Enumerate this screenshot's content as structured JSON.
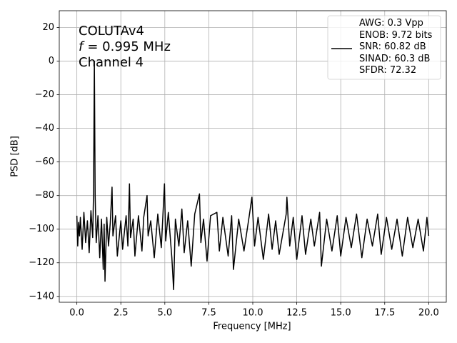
{
  "chart_data": {
    "type": "line",
    "xlabel": "Frequency [MHz]",
    "ylabel": "PSD [dB]",
    "annotation": [
      "COLUTAv4",
      "f",
      "= 0.995 MHz",
      "Channel 4"
    ],
    "xlim": [
      -1,
      21
    ],
    "ylim": [
      -143.5,
      30
    ],
    "xticks": [
      {
        "value": 0,
        "label": "0.0"
      },
      2.5,
      {
        "value": 5,
        "label": "5.0"
      },
      7.5,
      {
        "value": 10,
        "label": "10.0"
      },
      12.5,
      {
        "value": 15,
        "label": "15.0"
      },
      17.5,
      {
        "value": 20,
        "label": "20.0"
      }
    ],
    "yticks": [
      20,
      0,
      {
        "value": -20,
        "label": "−20"
      },
      {
        "value": -40,
        "label": "−40"
      },
      {
        "value": -60,
        "label": "−60"
      },
      {
        "value": -80,
        "label": "−80"
      },
      {
        "value": -100,
        "label": "−100"
      },
      {
        "value": -120,
        "label": "−120"
      },
      {
        "value": -140,
        "label": "−140"
      }
    ],
    "grid": true,
    "legend": "upper right",
    "x": [
      0,
      0.05,
      0.1,
      0.15,
      0.2,
      0.3,
      0.4,
      0.5,
      0.6,
      0.7,
      0.8,
      0.9,
      0.95,
      0.995,
      1.04,
      1.1,
      1.2,
      1.3,
      1.4,
      1.5,
      1.55,
      1.6,
      1.7,
      1.8,
      1.9,
      2.0,
      2.05,
      2.2,
      2.3,
      2.5,
      2.6,
      2.8,
      2.9,
      2.99,
      3.05,
      3.2,
      3.3,
      3.5,
      3.7,
      3.8,
      3.99,
      4.05,
      4.2,
      4.4,
      4.6,
      4.8,
      4.98,
      5.05,
      5.2,
      5.4,
      5.5,
      5.6,
      5.8,
      5.97,
      6.1,
      6.3,
      6.5,
      6.7,
      6.97,
      7.05,
      7.2,
      7.4,
      7.6,
      7.96,
      8.1,
      8.3,
      8.6,
      8.8,
      8.9,
      9.2,
      9.5,
      9.8,
      9.95,
      10.1,
      10.3,
      10.6,
      10.9,
      11.1,
      11.3,
      11.5,
      11.9,
      11.94,
      12.1,
      12.3,
      12.5,
      12.8,
      13.0,
      13.3,
      13.5,
      13.8,
      13.9,
      14.2,
      14.5,
      14.8,
      15.0,
      15.3,
      15.6,
      15.9,
      16.2,
      16.5,
      16.8,
      17.1,
      17.3,
      17.6,
      17.9,
      18.2,
      18.5,
      18.8,
      19.1,
      19.4,
      19.7,
      19.9,
      20.0
    ],
    "series": [
      {
        "name": "AWG: 0.3 Vpp\nENOB: 9.72 bits\nSNR: 60.82 dB\nSINAD: 60.3 dB\nSFDR: 72.32",
        "color": "#000000",
        "values": [
          -92,
          -110,
          -96,
          -104,
          -93,
          -112,
          -90,
          -108,
          -95,
          -114,
          -89,
          -105,
          -77,
          0,
          -80,
          -108,
          -92,
          -117,
          -94,
          -124,
          -97,
          -131,
          -93,
          -110,
          -96,
          -75,
          -104,
          -92,
          -116,
          -95,
          -112,
          -92,
          -110,
          -73,
          -105,
          -94,
          -116,
          -92,
          -113,
          -93,
          -80,
          -104,
          -95,
          -117,
          -91,
          -111,
          -73,
          -107,
          -90,
          -117,
          -136,
          -94,
          -110,
          -88,
          -114,
          -95,
          -122,
          -91,
          -79,
          -108,
          -94,
          -119,
          -92,
          -90,
          -113,
          -93,
          -116,
          -92,
          -124,
          -94,
          -113,
          -92,
          -81,
          -110,
          -93,
          -118,
          -91,
          -112,
          -95,
          -115,
          -91,
          -81,
          -110,
          -93,
          -118,
          -92,
          -115,
          -94,
          -110,
          -90,
          -122,
          -94,
          -113,
          -92,
          -116,
          -93,
          -111,
          -91,
          -117,
          -94,
          -110,
          -91,
          -115,
          -93,
          -112,
          -94,
          -116,
          -93,
          -111,
          -94,
          -113,
          -93,
          -104
        ]
      }
    ]
  }
}
